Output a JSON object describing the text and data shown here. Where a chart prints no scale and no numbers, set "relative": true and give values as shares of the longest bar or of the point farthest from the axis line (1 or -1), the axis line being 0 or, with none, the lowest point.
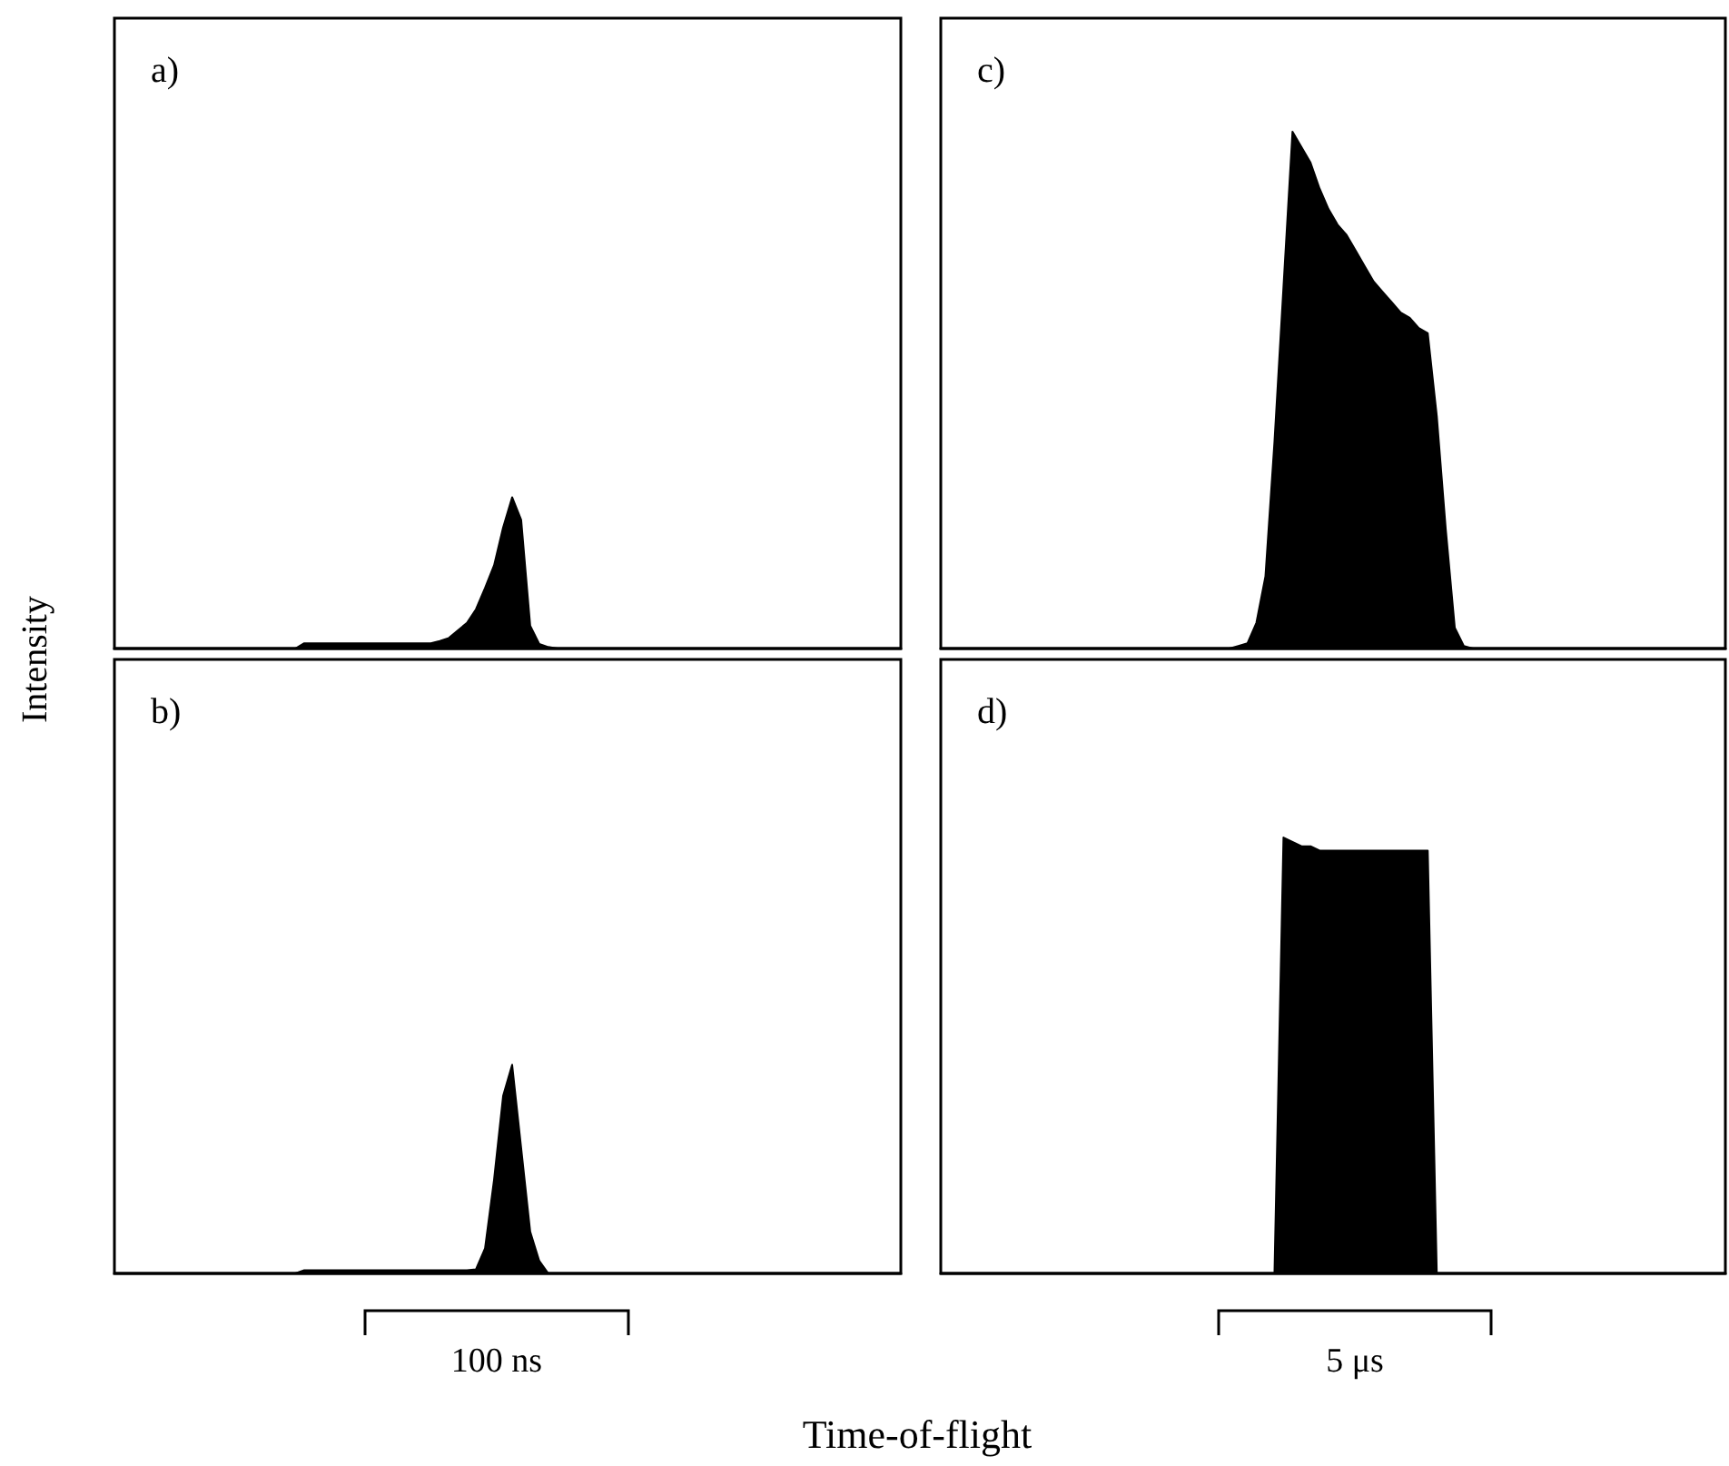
{
  "chart_data": [
    {
      "type": "area",
      "title": "a)",
      "ylabel": "Intensity",
      "relative": true,
      "color": "#000000",
      "categories": [
        null,
        null,
        null,
        null,
        null,
        null,
        null,
        null,
        null,
        null,
        null,
        null,
        null,
        null,
        null,
        null,
        null,
        null,
        null,
        null,
        null,
        null,
        null,
        null,
        null,
        null,
        null,
        null,
        null,
        null,
        null,
        null,
        null,
        null,
        null,
        null,
        null,
        null,
        null,
        null,
        null,
        null,
        null,
        null,
        null,
        null,
        null,
        null,
        null,
        null,
        null,
        null,
        null,
        null,
        null,
        null,
        null,
        null,
        null,
        null,
        null,
        null,
        null,
        null,
        null,
        null,
        null,
        null,
        null,
        null,
        null,
        null,
        null,
        null,
        null,
        null,
        null,
        null,
        null,
        null,
        null,
        null,
        null,
        null,
        null,
        null,
        null,
        null
      ],
      "values": [
        0,
        0,
        0,
        0,
        0,
        0,
        0,
        0,
        0,
        0,
        0,
        0,
        0,
        0,
        0,
        0,
        0,
        0,
        0,
        0,
        0,
        0.035,
        0.035,
        0.035,
        0.035,
        0.035,
        0.035,
        0.035,
        0.035,
        0.035,
        0.035,
        0.035,
        0.035,
        0.035,
        0.035,
        0.035,
        0.05,
        0.07,
        0.12,
        0.17,
        0.26,
        0.4,
        0.55,
        0.8,
        1,
        0.85,
        0.15,
        0.03,
        0.01,
        0,
        0,
        0,
        0,
        0,
        0,
        0,
        0,
        0,
        0,
        0,
        0,
        0,
        0,
        0,
        0,
        0,
        0,
        0,
        0,
        0,
        0,
        0,
        0,
        0,
        0,
        0,
        0,
        0,
        0,
        0,
        0,
        0,
        0,
        0,
        0,
        0,
        0,
        0
      ]
    },
    {
      "type": "area",
      "title": "b)",
      "xlabel": "Time-of-flight",
      "annotations": [
        "100 ns"
      ],
      "relative": true,
      "color": "#000000",
      "categories": [
        null,
        null,
        null,
        null,
        null,
        null,
        null,
        null,
        null,
        null,
        null,
        null,
        null,
        null,
        null,
        null,
        null,
        null,
        null,
        null,
        null,
        null,
        null,
        null,
        null,
        null,
        null,
        null,
        null,
        null,
        null,
        null,
        null,
        null,
        null,
        null,
        null,
        null,
        null,
        null,
        null,
        null,
        null,
        null,
        null,
        null,
        null,
        null,
        null,
        null,
        null,
        null,
        null,
        null,
        null,
        null,
        null,
        null,
        null,
        null,
        null,
        null,
        null,
        null,
        null,
        null,
        null,
        null,
        null,
        null,
        null,
        null,
        null,
        null,
        null,
        null,
        null,
        null,
        null,
        null,
        null,
        null,
        null,
        null,
        null,
        null,
        null,
        null
      ],
      "values": [
        0,
        0,
        0,
        0,
        0,
        0,
        0,
        0,
        0,
        0,
        0,
        0,
        0,
        0,
        0,
        0,
        0,
        0,
        0,
        0,
        0,
        0.015,
        0.015,
        0.015,
        0.015,
        0.015,
        0.015,
        0.015,
        0.015,
        0.015,
        0.015,
        0.015,
        0.015,
        0.015,
        0.015,
        0.015,
        0.015,
        0.015,
        0.015,
        0.015,
        0.02,
        0.12,
        0.45,
        0.85,
        1,
        0.6,
        0.2,
        0.06,
        0,
        0,
        0,
        0,
        0,
        0,
        0,
        0,
        0,
        0,
        0,
        0,
        0,
        0,
        0,
        0,
        0,
        0,
        0,
        0,
        0,
        0,
        0,
        0,
        0,
        0,
        0,
        0,
        0,
        0,
        0,
        0,
        0,
        0,
        0,
        0,
        0,
        0,
        0,
        0
      ]
    },
    {
      "type": "area",
      "title": "c)",
      "relative": true,
      "color": "#000000",
      "categories": [
        null,
        null,
        null,
        null,
        null,
        null,
        null,
        null,
        null,
        null,
        null,
        null,
        null,
        null,
        null,
        null,
        null,
        null,
        null,
        null,
        null,
        null,
        null,
        null,
        null,
        null,
        null,
        null,
        null,
        null,
        null,
        null,
        null,
        null,
        null,
        null,
        null,
        null,
        null,
        null,
        null,
        null,
        null,
        null,
        null,
        null,
        null,
        null,
        null,
        null,
        null,
        null,
        null,
        null,
        null,
        null,
        null,
        null,
        null,
        null,
        null,
        null,
        null,
        null,
        null,
        null,
        null,
        null,
        null,
        null,
        null,
        null,
        null,
        null,
        null,
        null,
        null,
        null,
        null,
        null,
        null,
        null,
        null,
        null,
        null,
        null,
        null,
        null
      ],
      "values": [
        0,
        0,
        0,
        0,
        0,
        0,
        0,
        0,
        0,
        0,
        0,
        0,
        0,
        0,
        0,
        0,
        0,
        0,
        0,
        0,
        0,
        0,
        0,
        0,
        0,
        0,
        0,
        0,
        0,
        0,
        0,
        0,
        0,
        0.005,
        0.01,
        0.05,
        0.14,
        0.4,
        0.7,
        1,
        0.97,
        0.94,
        0.89,
        0.85,
        0.82,
        0.8,
        0.77,
        0.74,
        0.71,
        0.69,
        0.67,
        0.65,
        0.64,
        0.62,
        0.61,
        0.45,
        0.23,
        0.04,
        0.005,
        0,
        0,
        0,
        0,
        0,
        0,
        0,
        0,
        0,
        0,
        0,
        0,
        0,
        0,
        0,
        0,
        0,
        0,
        0,
        0,
        0,
        0,
        0,
        0,
        0,
        0,
        0,
        0,
        0
      ]
    },
    {
      "type": "area",
      "title": "d)",
      "annotations": [
        "5 μs"
      ],
      "relative": true,
      "color": "#000000",
      "categories": [
        null,
        null,
        null,
        null,
        null,
        null,
        null,
        null,
        null,
        null,
        null,
        null,
        null,
        null,
        null,
        null,
        null,
        null,
        null,
        null,
        null,
        null,
        null,
        null,
        null,
        null,
        null,
        null,
        null,
        null,
        null,
        null,
        null,
        null,
        null,
        null,
        null,
        null,
        null,
        null,
        null,
        null,
        null,
        null,
        null,
        null,
        null,
        null,
        null,
        null,
        null,
        null,
        null,
        null,
        null,
        null,
        null,
        null,
        null,
        null,
        null,
        null,
        null,
        null,
        null,
        null,
        null,
        null,
        null,
        null,
        null,
        null,
        null,
        null,
        null,
        null,
        null,
        null,
        null,
        null,
        null,
        null,
        null,
        null,
        null,
        null,
        null,
        null
      ],
      "values": [
        0,
        0,
        0,
        0,
        0,
        0,
        0,
        0,
        0,
        0,
        0,
        0,
        0,
        0,
        0,
        0,
        0,
        0,
        0,
        0,
        0,
        0,
        0,
        0,
        0,
        0,
        0,
        0,
        0,
        0,
        0,
        0,
        0,
        0,
        0,
        0,
        0,
        0,
        1,
        0.99,
        0.98,
        0.98,
        0.97,
        0.97,
        0.97,
        0.97,
        0.97,
        0.97,
        0.97,
        0.97,
        0.97,
        0.97,
        0.97,
        0.97,
        0.97,
        0,
        0,
        0,
        0,
        0,
        0,
        0,
        0,
        0,
        0,
        0,
        0,
        0,
        0,
        0,
        0,
        0,
        0,
        0,
        0,
        0,
        0,
        0,
        0,
        0,
        0,
        0,
        0,
        0,
        0,
        0,
        0,
        0
      ]
    }
  ]
}
